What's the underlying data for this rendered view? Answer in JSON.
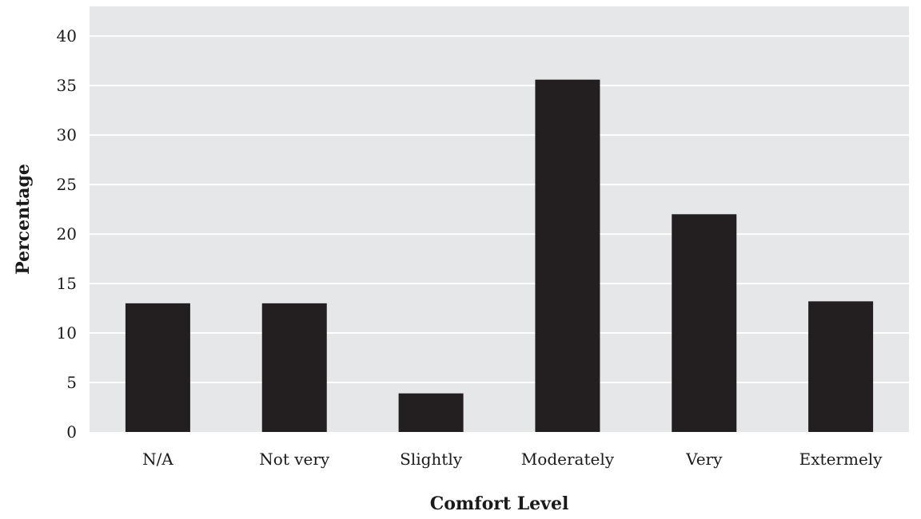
{
  "chart_data": {
    "type": "bar",
    "title": "",
    "xlabel": "Comfort Level",
    "ylabel": "Percentage",
    "categories": [
      "N/A",
      "Not very",
      "Slightly",
      "Moderately",
      "Very",
      "Extermely"
    ],
    "values": [
      13,
      13,
      3.9,
      35.6,
      22,
      13.2
    ],
    "ylim": [
      0,
      43
    ],
    "yticks": [
      0,
      5,
      10,
      15,
      20,
      25,
      30,
      35,
      40
    ],
    "grid": true,
    "legend": "none",
    "colors": {
      "bar": "#231f20",
      "plot_background": "#e6e7e8",
      "gridline": "#ffffff"
    }
  }
}
